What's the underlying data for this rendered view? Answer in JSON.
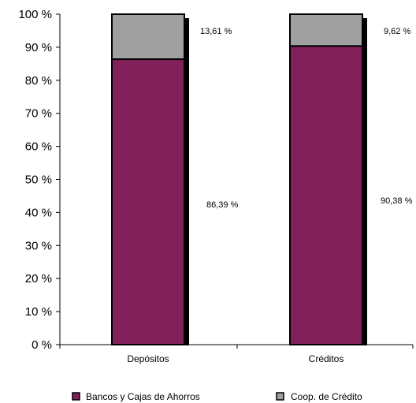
{
  "chart_data": {
    "type": "bar",
    "stacked": true,
    "percent": true,
    "categories": [
      "Depósitos",
      "Créditos"
    ],
    "series": [
      {
        "name": "Bancos y Cajas de Ahorros",
        "values": [
          86.39,
          90.38
        ],
        "labels": [
          "86,39 %",
          "90,38 %"
        ],
        "color": "#82205a"
      },
      {
        "name": "Coop. de Crédito",
        "values": [
          13.61,
          9.62
        ],
        "labels": [
          "13,61 %",
          "9,62 %"
        ],
        "color": "#a0a0a0"
      }
    ],
    "ylim": [
      0,
      100
    ],
    "yticks": [
      0,
      10,
      20,
      30,
      40,
      50,
      60,
      70,
      80,
      90,
      100
    ],
    "ytick_labels": [
      "0 %",
      "10 %",
      "20 %",
      "30 %",
      "40 %",
      "50 %",
      "60 %",
      "70 %",
      "80 %",
      "90 %",
      "100 %"
    ],
    "legend_position": "bottom",
    "grid": false
  }
}
